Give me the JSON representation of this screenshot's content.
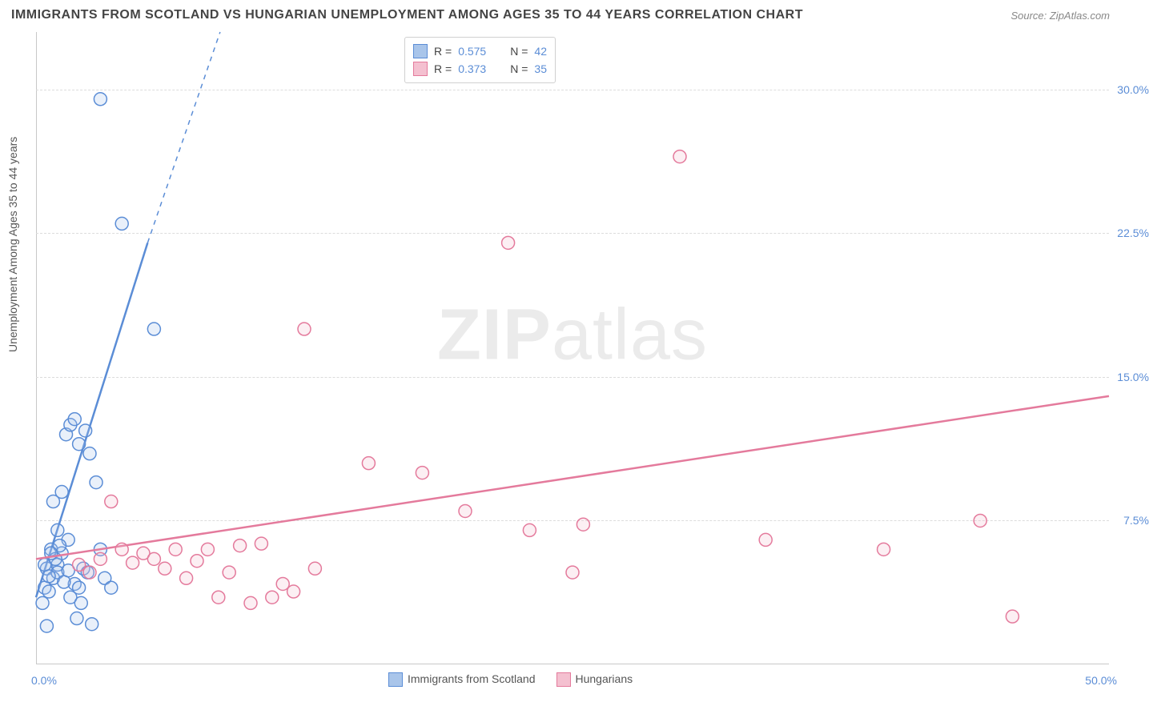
{
  "title": "IMMIGRANTS FROM SCOTLAND VS HUNGARIAN UNEMPLOYMENT AMONG AGES 35 TO 44 YEARS CORRELATION CHART",
  "source_label": "Source: ZipAtlas.com",
  "y_axis_label": "Unemployment Among Ages 35 to 44 years",
  "watermark_bold": "ZIP",
  "watermark_rest": "atlas",
  "chart": {
    "type": "scatter",
    "xlim": [
      0,
      50
    ],
    "ylim": [
      0,
      33
    ],
    "y_ticks": [
      7.5,
      15.0,
      22.5,
      30.0
    ],
    "y_tick_labels": [
      "7.5%",
      "15.0%",
      "22.5%",
      "30.0%"
    ],
    "x_tick_min_label": "0.0%",
    "x_tick_max_label": "50.0%",
    "background_color": "#ffffff",
    "grid_color": "#dcdcdc",
    "axis_color": "#c8c8c8",
    "tick_label_color": "#5b8dd6",
    "marker_radius": 8,
    "marker_stroke_width": 1.5,
    "marker_fill_opacity": 0.25,
    "trend_line_width": 2.5,
    "trend_dash_width": 1.5
  },
  "series": [
    {
      "name": "Immigrants from Scotland",
      "color_stroke": "#5b8dd6",
      "color_fill": "#a9c5ea",
      "R": "0.575",
      "N": "42",
      "trend": {
        "x1": 0,
        "y1": 3.5,
        "x2_solid": 5.2,
        "y2_solid": 22.0,
        "x2_dash": 9.5,
        "y2_dash": 36
      },
      "points": [
        [
          0.4,
          4.0
        ],
        [
          0.5,
          5.0
        ],
        [
          0.6,
          3.8
        ],
        [
          0.8,
          4.5
        ],
        [
          1.0,
          5.2
        ],
        [
          0.3,
          3.2
        ],
        [
          0.7,
          6.0
        ],
        [
          1.2,
          5.8
        ],
        [
          1.5,
          6.5
        ],
        [
          1.0,
          7.0
        ],
        [
          0.5,
          2.0
        ],
        [
          1.8,
          4.2
        ],
        [
          2.0,
          4.0
        ],
        [
          2.2,
          5.0
        ],
        [
          0.8,
          8.5
        ],
        [
          1.2,
          9.0
        ],
        [
          1.4,
          12.0
        ],
        [
          1.6,
          12.5
        ],
        [
          1.8,
          12.8
        ],
        [
          2.0,
          11.5
        ],
        [
          2.3,
          12.2
        ],
        [
          2.5,
          11.0
        ],
        [
          2.8,
          9.5
        ],
        [
          3.0,
          6.0
        ],
        [
          3.2,
          4.5
        ],
        [
          3.5,
          4.0
        ],
        [
          4.0,
          23.0
        ],
        [
          3.0,
          29.5
        ],
        [
          5.5,
          17.5
        ],
        [
          1.0,
          4.8
        ],
        [
          0.6,
          4.6
        ],
        [
          0.9,
          5.5
        ],
        [
          1.1,
          6.2
        ],
        [
          1.3,
          4.3
        ],
        [
          1.6,
          3.5
        ],
        [
          2.1,
          3.2
        ],
        [
          0.4,
          5.2
        ],
        [
          0.7,
          5.8
        ],
        [
          2.6,
          2.1
        ],
        [
          1.9,
          2.4
        ],
        [
          2.4,
          4.8
        ],
        [
          1.5,
          4.9
        ]
      ]
    },
    {
      "name": "Hungarians",
      "color_stroke": "#e47a9c",
      "color_fill": "#f4c0d0",
      "R": "0.373",
      "N": "35",
      "trend": {
        "x1": 0,
        "y1": 5.5,
        "x2_solid": 50,
        "y2_solid": 14.0
      },
      "points": [
        [
          2.0,
          5.2
        ],
        [
          3.0,
          5.5
        ],
        [
          4.0,
          6.0
        ],
        [
          5.0,
          5.8
        ],
        [
          3.5,
          8.5
        ],
        [
          5.5,
          5.5
        ],
        [
          6.0,
          5.0
        ],
        [
          6.5,
          6.0
        ],
        [
          7.0,
          4.5
        ],
        [
          8.0,
          6.0
        ],
        [
          8.5,
          3.5
        ],
        [
          9.0,
          4.8
        ],
        [
          9.5,
          6.2
        ],
        [
          10.0,
          3.2
        ],
        [
          10.5,
          6.3
        ],
        [
          11.0,
          3.5
        ],
        [
          12.0,
          3.8
        ],
        [
          12.5,
          17.5
        ],
        [
          15.5,
          10.5
        ],
        [
          18.0,
          10.0
        ],
        [
          20.0,
          8.0
        ],
        [
          22.0,
          22.0
        ],
        [
          23.0,
          7.0
        ],
        [
          25.0,
          4.8
        ],
        [
          25.5,
          7.3
        ],
        [
          30.0,
          26.5
        ],
        [
          34.0,
          6.5
        ],
        [
          39.5,
          6.0
        ],
        [
          44.0,
          7.5
        ],
        [
          45.5,
          2.5
        ],
        [
          2.5,
          4.8
        ],
        [
          4.5,
          5.3
        ],
        [
          7.5,
          5.4
        ],
        [
          11.5,
          4.2
        ],
        [
          13.0,
          5.0
        ]
      ]
    }
  ],
  "legend_bottom": [
    {
      "label": "Immigrants from Scotland",
      "stroke": "#5b8dd6",
      "fill": "#a9c5ea"
    },
    {
      "label": "Hungarians",
      "stroke": "#e47a9c",
      "fill": "#f4c0d0"
    }
  ]
}
